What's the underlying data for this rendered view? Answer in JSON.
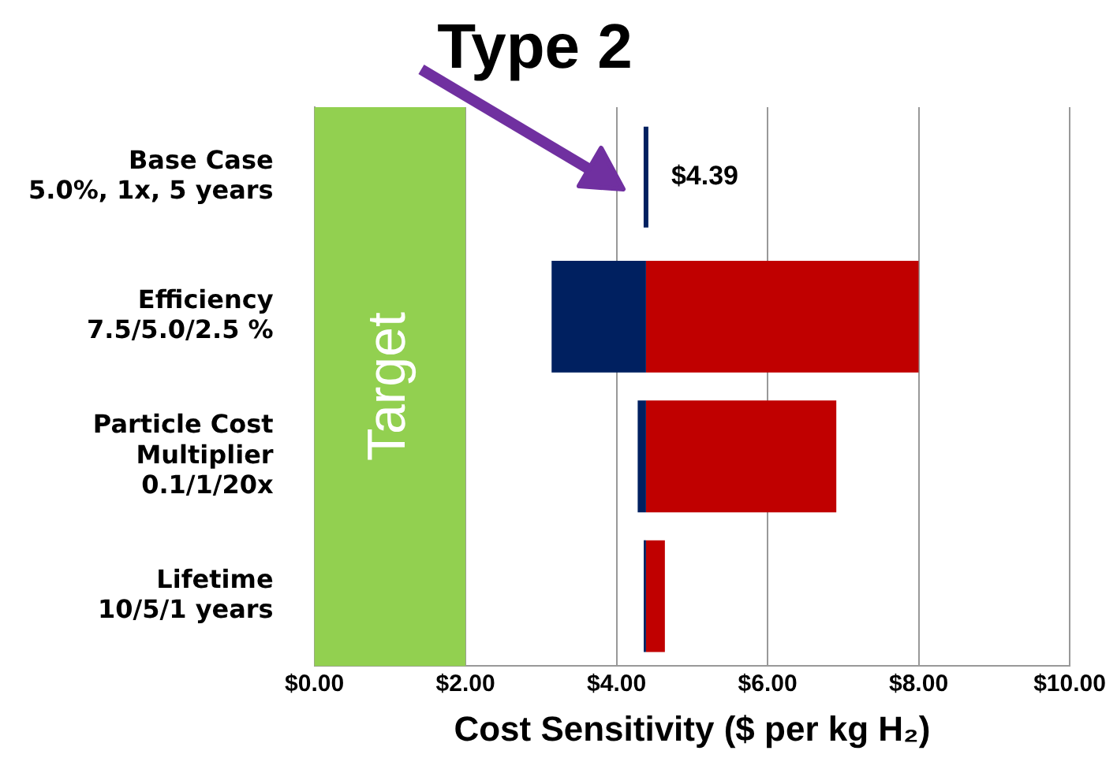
{
  "chart_data": {
    "type": "bar",
    "orientation": "horizontal",
    "title": "Type 2",
    "xlabel": "Cost Sensitivity ($ per kg H₂)",
    "categories": [
      "Base Case\n5.0%, 1x, 5 years",
      "Efficiency\n7.5/5.0/2.5 %",
      "Particle Cost\nMultiplier\n0.1/1/20x",
      "Lifetime\n10/5/1 years"
    ],
    "series": [
      {
        "color": "#002060",
        "base": [
          null,
          3.14,
          4.28,
          4.36
        ],
        "values": [
          null,
          1.25,
          0.11,
          0.03
        ]
      },
      {
        "color": "#c00000",
        "base": [
          null,
          4.39,
          4.39,
          4.39
        ],
        "values": [
          null,
          3.61,
          2.52,
          0.25
        ]
      }
    ],
    "ref_lines": [
      {
        "axis": "x",
        "value": 4.39,
        "label": "$4.39",
        "color": "#002060"
      }
    ],
    "bands": [
      {
        "axis": "x",
        "from": 0,
        "to": 2,
        "label": "Target",
        "color": "#92d050"
      }
    ],
    "xlim": [
      0,
      10
    ],
    "xticks": [
      {
        "value": 0,
        "label": "$0.00"
      },
      {
        "value": 2,
        "label": "$2.00"
      },
      {
        "value": 4,
        "label": "$4.00"
      },
      {
        "value": 6,
        "label": "$6.00"
      },
      {
        "value": 8,
        "label": "$8.00"
      },
      {
        "value": 10,
        "label": "$10.00"
      }
    ],
    "grid": "x",
    "legend": false
  }
}
